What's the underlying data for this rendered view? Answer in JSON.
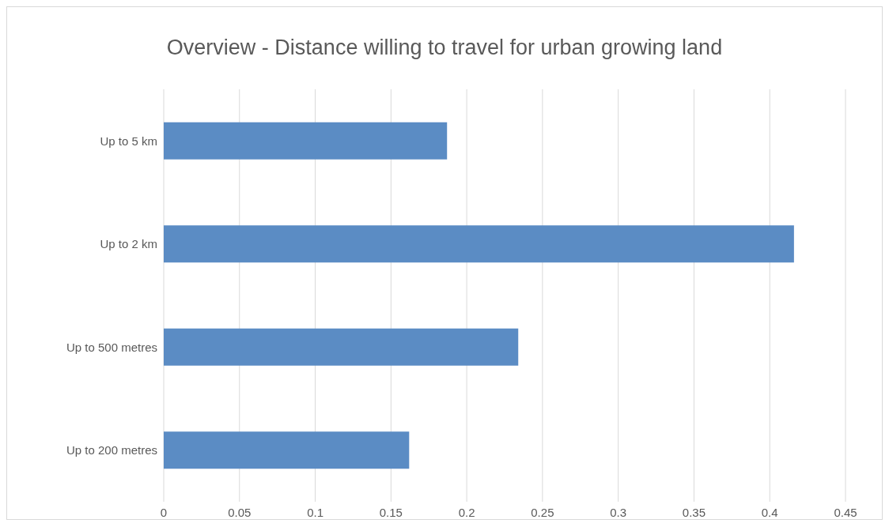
{
  "chart_data": {
    "type": "bar",
    "orientation": "horizontal",
    "title": "Overview - Distance willing to travel for urban growing land",
    "categories": [
      "Up to 5 km",
      "Up to 2 km",
      "Up to 500 metres",
      "Up to 200 metres"
    ],
    "values": [
      0.187,
      0.416,
      0.234,
      0.162
    ],
    "color": "#5b8cc4",
    "xlim": [
      0,
      0.45
    ],
    "xticks": [
      0,
      0.05,
      0.1,
      0.15,
      0.2,
      0.25,
      0.3,
      0.35,
      0.4,
      0.45
    ],
    "grid": "x"
  }
}
